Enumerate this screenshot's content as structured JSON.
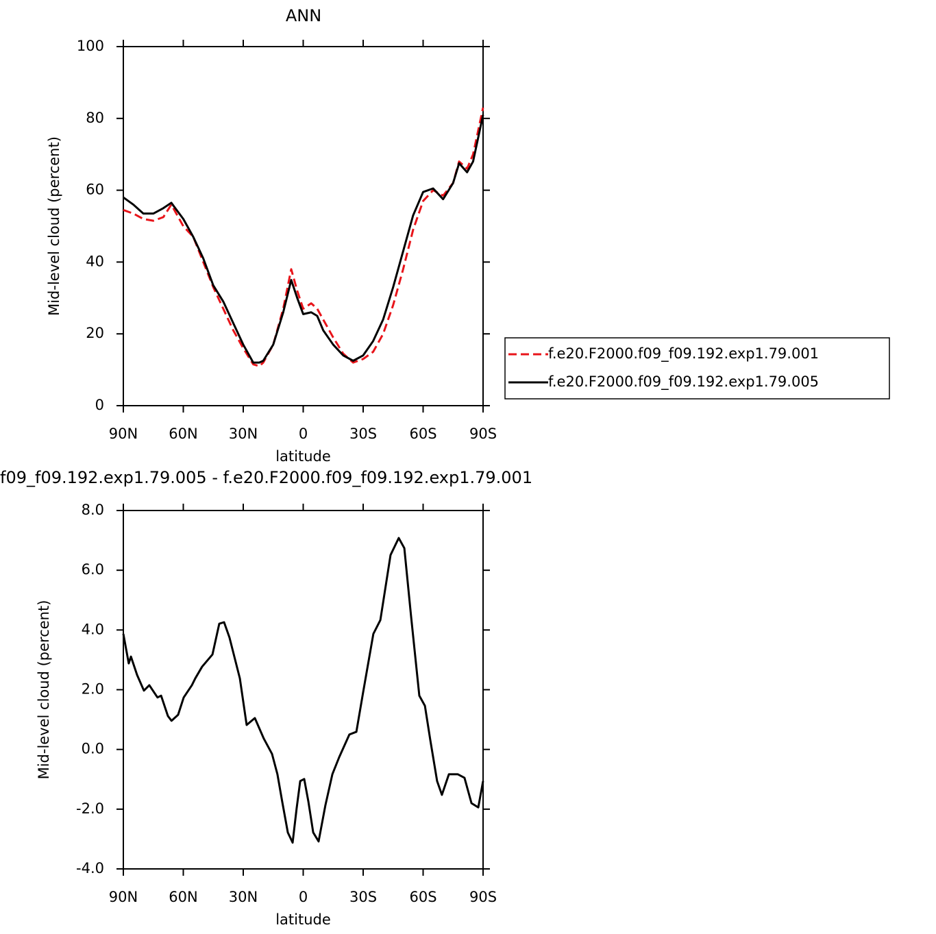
{
  "chart_data": [
    {
      "type": "line",
      "title": "ANN",
      "xlabel": "latitude",
      "ylabel": "Mid-level cloud (percent)",
      "x": [
        90,
        85,
        80,
        75,
        70,
        66,
        60,
        55,
        50,
        45,
        40,
        35,
        30,
        25,
        22,
        20,
        15,
        10,
        6,
        3,
        0,
        -4,
        -7,
        -10,
        -15,
        -20,
        -25,
        -30,
        -35,
        -40,
        -45,
        -50,
        -55,
        -60,
        -65,
        -70,
        -75,
        -78,
        -82,
        -85,
        -90
      ],
      "series": [
        {
          "name": "f.e20.F2000.f09_f09.192.exp1.79.001",
          "color": "#e8141a",
          "dash": true,
          "values": [
            54.5,
            53.5,
            52,
            51.5,
            52.5,
            56,
            50,
            47,
            40,
            33,
            27,
            21,
            16,
            11.5,
            11,
            12,
            17,
            27,
            38,
            32,
            27,
            28.5,
            27,
            24,
            19,
            14.5,
            12,
            13,
            15,
            20,
            28,
            38,
            49,
            57,
            60,
            58.5,
            62,
            68,
            66,
            70,
            83
          ]
        },
        {
          "name": "f.e20.F2000.f09_f09.192.exp1.79.005",
          "color": "#000000",
          "dash": false,
          "values": [
            58,
            56,
            53.5,
            53.5,
            55,
            56.5,
            52,
            47,
            41,
            33.5,
            29,
            23,
            17,
            12,
            12,
            12.5,
            17,
            26,
            35,
            30,
            25.5,
            26,
            25,
            21,
            17,
            14,
            12.5,
            14,
            18,
            24,
            33,
            43,
            53,
            59.5,
            60.5,
            57.5,
            62,
            67.5,
            65,
            68,
            81
          ]
        }
      ],
      "xlim": [
        90,
        -90
      ],
      "xticks": [
        {
          "value": 90,
          "label": "90N"
        },
        {
          "value": 60,
          "label": "60N"
        },
        {
          "value": 30,
          "label": "30N"
        },
        0,
        {
          "value": -30,
          "label": "30S"
        },
        {
          "value": -60,
          "label": "60S"
        },
        {
          "value": -90,
          "label": "90S"
        }
      ],
      "ylim": [
        0,
        100
      ],
      "yticks": [
        0,
        20,
        40,
        60,
        80,
        100
      ],
      "legend": "right"
    },
    {
      "type": "line",
      "title": "f09_f09.192.exp1.79.005 - f.e20.F2000.f09_f09.192.exp1.79.001",
      "xlabel": "latitude",
      "ylabel": "Mid-level cloud (percent)",
      "x": [
        90,
        87.3,
        86.2,
        83.1,
        79.7,
        77,
        72.9,
        71.1,
        67.7,
        65.9,
        62.6,
        59.8,
        55.7,
        54,
        50.6,
        45.4,
        42,
        39.6,
        36.9,
        31.7,
        28.3,
        24.2,
        19.7,
        15.6,
        12.9,
        10.5,
        7.7,
        5.3,
        3.3,
        1.5,
        -0.5,
        -2.6,
        -5,
        -7.7,
        -11.1,
        -14.6,
        -18,
        -23.1,
        -26.6,
        -30,
        -35.1,
        -38.6,
        -43.7,
        -47.8,
        -50.6,
        -54,
        -58.1,
        -60.9,
        -63.6,
        -67,
        -69.4,
        -72.9,
        -77.3,
        -80.7,
        -84.2,
        -87.6,
        -90
      ],
      "series": [
        {
          "color": "#000000",
          "dash": false,
          "values": [
            3.87,
            2.88,
            3.11,
            2.49,
            1.97,
            2.15,
            1.74,
            1.8,
            1.12,
            0.96,
            1.16,
            1.74,
            2.15,
            2.38,
            2.77,
            3.18,
            4.21,
            4.26,
            3.75,
            2.38,
            0.82,
            1.05,
            0.36,
            -0.15,
            -0.83,
            -1.75,
            -2.78,
            -3.12,
            -1.98,
            -1.06,
            -0.99,
            -1.75,
            -2.78,
            -3.08,
            -1.87,
            -0.83,
            -0.26,
            0.5,
            0.59,
            1.92,
            3.87,
            4.33,
            6.51,
            7.08,
            6.74,
            4.44,
            1.8,
            1.46,
            0.31,
            -1.06,
            -1.52,
            -0.83,
            -0.83,
            -0.95,
            -1.8,
            -1.94,
            -1.06
          ]
        }
      ],
      "xlim": [
        90,
        -90
      ],
      "xticks": [
        {
          "value": 90,
          "label": "90N"
        },
        {
          "value": 60,
          "label": "60N"
        },
        {
          "value": 30,
          "label": "30N"
        },
        0,
        {
          "value": -30,
          "label": "30S"
        },
        {
          "value": -60,
          "label": "60S"
        },
        {
          "value": -90,
          "label": "90S"
        }
      ],
      "ylim": [
        -4,
        8
      ],
      "yticks": [
        {
          "value": -4,
          "label": "-4.0"
        },
        {
          "value": -2,
          "label": "-2.0"
        },
        {
          "value": 0,
          "label": "0.0"
        },
        {
          "value": 2,
          "label": "2.0"
        },
        {
          "value": 4,
          "label": "4.0"
        },
        {
          "value": 6,
          "label": "6.0"
        },
        {
          "value": 8,
          "label": "8.0"
        }
      ]
    }
  ]
}
